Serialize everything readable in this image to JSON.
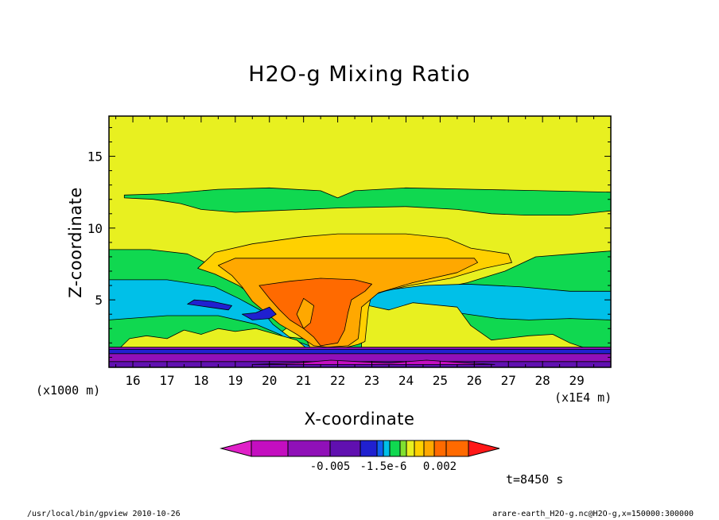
{
  "chart_data": {
    "type": "heatmap",
    "title": "H2O-g Mixing Ratio",
    "xlabel": "X-coordinate",
    "ylabel": "Z-coordinate",
    "x_unit_label": "(x1000 m)",
    "x_scale_label": "(x1E4 m)",
    "xlim": [
      15.3,
      30.0
    ],
    "ylim": [
      0.3,
      17.8
    ],
    "x_ticks": [
      16,
      17,
      18,
      19,
      20,
      21,
      22,
      23,
      24,
      25,
      26,
      27,
      28,
      29
    ],
    "y_ticks": [
      5,
      10,
      15
    ],
    "time_label": "t=8450 s",
    "colorbar": {
      "tick_labels": [
        "-0.005",
        "-1.5e-6",
        "0.002"
      ],
      "colors": [
        "#e020c8",
        "#c40ec0",
        "#9010b8",
        "#6010b0",
        "#2020d0",
        "#1060f0",
        "#00c0e8",
        "#10d850",
        "#80e030",
        "#e8f020",
        "#ffd000",
        "#ffa800",
        "#ff6a00",
        "#ff1818"
      ]
    },
    "regions": [
      {
        "color": "#e8f020",
        "polygon": [
          [
            15.3,
            0.3
          ],
          [
            30,
            0.3
          ],
          [
            30,
            17.8
          ],
          [
            15.3,
            17.8
          ]
        ]
      },
      {
        "color": "#10d850",
        "polygon": [
          [
            15.75,
            12.3
          ],
          [
            17,
            12.4
          ],
          [
            18.5,
            12.7
          ],
          [
            20,
            12.8
          ],
          [
            21.5,
            12.6
          ],
          [
            22,
            12.1
          ],
          [
            22.5,
            12.6
          ],
          [
            24,
            12.8
          ],
          [
            26,
            12.7
          ],
          [
            28,
            12.6
          ],
          [
            30,
            12.5
          ],
          [
            30,
            11.2
          ],
          [
            28.8,
            10.9
          ],
          [
            27.5,
            10.9
          ],
          [
            26.5,
            11.0
          ],
          [
            25.5,
            11.3
          ],
          [
            24,
            11.5
          ],
          [
            22,
            11.4
          ],
          [
            20,
            11.2
          ],
          [
            19,
            11.1
          ],
          [
            18,
            11.3
          ],
          [
            17.4,
            11.7
          ],
          [
            16.6,
            12.0
          ],
          [
            15.75,
            12.1
          ]
        ]
      },
      {
        "color": "#10d850",
        "polygon": [
          [
            15.3,
            8.5
          ],
          [
            16.5,
            8.5
          ],
          [
            17.6,
            8.2
          ],
          [
            18.3,
            7.4
          ],
          [
            19.2,
            6.7
          ],
          [
            20,
            6.0
          ],
          [
            20.6,
            5.3
          ],
          [
            20.8,
            4.0
          ],
          [
            20.6,
            3.2
          ],
          [
            20.2,
            2.5
          ],
          [
            21.4,
            2.2
          ],
          [
            22.2,
            2.5
          ],
          [
            23,
            3.0
          ],
          [
            24,
            3.7
          ],
          [
            24.6,
            4.8
          ],
          [
            24.8,
            5.7
          ],
          [
            25.8,
            6.2
          ],
          [
            26.9,
            7.0
          ],
          [
            27.8,
            8.0
          ],
          [
            28.9,
            8.2
          ],
          [
            30,
            8.4
          ],
          [
            30,
            1.6
          ],
          [
            15.3,
            1.6
          ]
        ]
      },
      {
        "color": "#00c0e8",
        "polygon": [
          [
            15.3,
            6.4
          ],
          [
            17.0,
            6.4
          ],
          [
            18.4,
            5.9
          ],
          [
            19.1,
            5.1
          ],
          [
            19.8,
            4.2
          ],
          [
            20.1,
            3.3
          ],
          [
            20.7,
            2.2
          ],
          [
            21.4,
            1.6
          ],
          [
            15.3,
            1.6
          ]
        ]
      },
      {
        "color": "#00c0e8",
        "polygon": [
          [
            22.6,
            5.0
          ],
          [
            23.5,
            5.7
          ],
          [
            24.5,
            6.0
          ],
          [
            25.8,
            6.1
          ],
          [
            27.4,
            5.9
          ],
          [
            28.8,
            5.6
          ],
          [
            30,
            5.6
          ],
          [
            30,
            1.6
          ],
          [
            22.8,
            1.6
          ],
          [
            22.9,
            3.0
          ]
        ]
      },
      {
        "color": "#10d850",
        "polygon": [
          [
            15.3,
            3.6
          ],
          [
            17,
            3.9
          ],
          [
            18.5,
            3.9
          ],
          [
            19.6,
            3.3
          ],
          [
            20.3,
            2.6
          ],
          [
            21,
            1.6
          ],
          [
            15.3,
            1.6
          ]
        ]
      },
      {
        "color": "#10d850",
        "polygon": [
          [
            22.7,
            3.7
          ],
          [
            23.5,
            4.2
          ],
          [
            25.5,
            4.1
          ],
          [
            26.7,
            3.7
          ],
          [
            27.6,
            3.6
          ],
          [
            28.8,
            3.7
          ],
          [
            30,
            3.6
          ],
          [
            30,
            1.6
          ],
          [
            22.8,
            1.6
          ]
        ]
      },
      {
        "color": "#e8f020",
        "polygon": [
          [
            15.6,
            1.6
          ],
          [
            15.9,
            2.3
          ],
          [
            16.4,
            2.5
          ],
          [
            17,
            2.3
          ],
          [
            17.5,
            2.9
          ],
          [
            18.0,
            2.6
          ],
          [
            18.5,
            3.0
          ],
          [
            19.0,
            2.8
          ],
          [
            19.6,
            3.0
          ],
          [
            20.2,
            2.6
          ],
          [
            20.8,
            2.2
          ],
          [
            21.1,
            1.6
          ]
        ]
      },
      {
        "color": "#e8f020",
        "polygon": [
          [
            22.7,
            1.6
          ],
          [
            22.7,
            4.7
          ],
          [
            23.5,
            4.3
          ],
          [
            24.2,
            4.8
          ],
          [
            25.5,
            4.5
          ],
          [
            25.9,
            3.2
          ],
          [
            26.5,
            2.2
          ],
          [
            27.6,
            2.5
          ],
          [
            28.3,
            2.6
          ],
          [
            28.8,
            2.0
          ],
          [
            29.3,
            1.6
          ]
        ]
      },
      {
        "color": "#ffd000",
        "polygon": [
          [
            17.9,
            7.2
          ],
          [
            18.4,
            8.3
          ],
          [
            19.5,
            8.9
          ],
          [
            21,
            9.4
          ],
          [
            22,
            9.6
          ],
          [
            24,
            9.6
          ],
          [
            25.2,
            9.3
          ],
          [
            25.9,
            8.6
          ],
          [
            27.0,
            8.2
          ],
          [
            27.1,
            7.6
          ],
          [
            26.3,
            7.2
          ],
          [
            25.3,
            6.5
          ],
          [
            24.1,
            6.0
          ],
          [
            23.0,
            5.4
          ],
          [
            22.9,
            4.4
          ],
          [
            22.8,
            2.1
          ],
          [
            22.6,
            1.9
          ],
          [
            22.1,
            1.6
          ],
          [
            21.2,
            1.6
          ],
          [
            21.0,
            2.7
          ],
          [
            20.6,
            3.6
          ],
          [
            19.8,
            4.8
          ],
          [
            19.1,
            6.0
          ],
          [
            18.4,
            6.8
          ]
        ]
      },
      {
        "color": "#ffa800",
        "polygon": [
          [
            18.5,
            7.4
          ],
          [
            19.0,
            7.9
          ],
          [
            20.0,
            7.9
          ],
          [
            26.0,
            7.9
          ],
          [
            26.1,
            7.6
          ],
          [
            25.5,
            6.9
          ],
          [
            24.2,
            6.2
          ],
          [
            23.2,
            5.5
          ],
          [
            22.7,
            4.5
          ],
          [
            22.6,
            2.3
          ],
          [
            22.3,
            1.8
          ],
          [
            21.7,
            1.7
          ],
          [
            21.3,
            1.8
          ],
          [
            20.8,
            2.6
          ],
          [
            20.3,
            3.3
          ],
          [
            19.5,
            4.9
          ],
          [
            19.2,
            5.9
          ],
          [
            18.9,
            6.7
          ]
        ]
      },
      {
        "color": "#ff6a00",
        "polygon": [
          [
            19.7,
            6.0
          ],
          [
            20.6,
            6.3
          ],
          [
            21.5,
            6.5
          ],
          [
            22.5,
            6.4
          ],
          [
            23.0,
            6.1
          ],
          [
            22.8,
            5.6
          ],
          [
            22.4,
            5.0
          ],
          [
            22.3,
            4.1
          ],
          [
            22.2,
            2.9
          ],
          [
            22.0,
            2.0
          ],
          [
            21.5,
            1.8
          ],
          [
            21.3,
            2.4
          ],
          [
            21.0,
            3.0
          ],
          [
            20.6,
            3.6
          ],
          [
            20.3,
            4.3
          ],
          [
            20.0,
            5.1
          ]
        ]
      },
      {
        "color": "#ffa800",
        "polygon": [
          [
            20.8,
            4.0
          ],
          [
            21.0,
            5.1
          ],
          [
            21.3,
            4.6
          ],
          [
            21.2,
            3.4
          ],
          [
            21.0,
            3.0
          ]
        ]
      },
      {
        "color": "#2020d0",
        "polygon": [
          [
            17.6,
            4.7
          ],
          [
            18.2,
            4.5
          ],
          [
            18.8,
            4.3
          ],
          [
            18.9,
            4.6
          ],
          [
            18.3,
            4.9
          ],
          [
            17.8,
            5.0
          ]
        ]
      },
      {
        "color": "#2020d0",
        "polygon": [
          [
            19.2,
            4.0
          ],
          [
            19.6,
            4.1
          ],
          [
            20.0,
            4.5
          ],
          [
            20.2,
            4.0
          ],
          [
            20.0,
            3.7
          ],
          [
            19.5,
            3.6
          ]
        ]
      },
      {
        "color": "#9010b8",
        "polygon": [
          [
            15.3,
            0.3
          ],
          [
            30,
            0.3
          ],
          [
            30,
            1.7
          ],
          [
            15.3,
            1.7
          ]
        ]
      },
      {
        "color": "#6010b0",
        "polygon": [
          [
            15.3,
            0.3
          ],
          [
            30,
            0.3
          ],
          [
            30,
            0.7
          ],
          [
            15.3,
            0.7
          ]
        ]
      },
      {
        "color": "#2020d0",
        "polygon": [
          [
            15.3,
            1.25
          ],
          [
            30,
            1.25
          ],
          [
            30,
            1.55
          ],
          [
            15.3,
            1.55
          ]
        ]
      },
      {
        "color": "#c40ec0",
        "polygon": [
          [
            19.5,
            0.5
          ],
          [
            20.8,
            0.6
          ],
          [
            21.8,
            0.8
          ],
          [
            22.6,
            0.7
          ],
          [
            23.5,
            0.6
          ],
          [
            24.6,
            0.8
          ],
          [
            25.8,
            0.6
          ],
          [
            26.6,
            0.5
          ]
        ]
      }
    ]
  },
  "footer": {
    "left": "/usr/local/bin/gpview  2010-10-26",
    "right": "arare-earth_H2O-g.nc@H2O-g,x=150000:300000"
  }
}
